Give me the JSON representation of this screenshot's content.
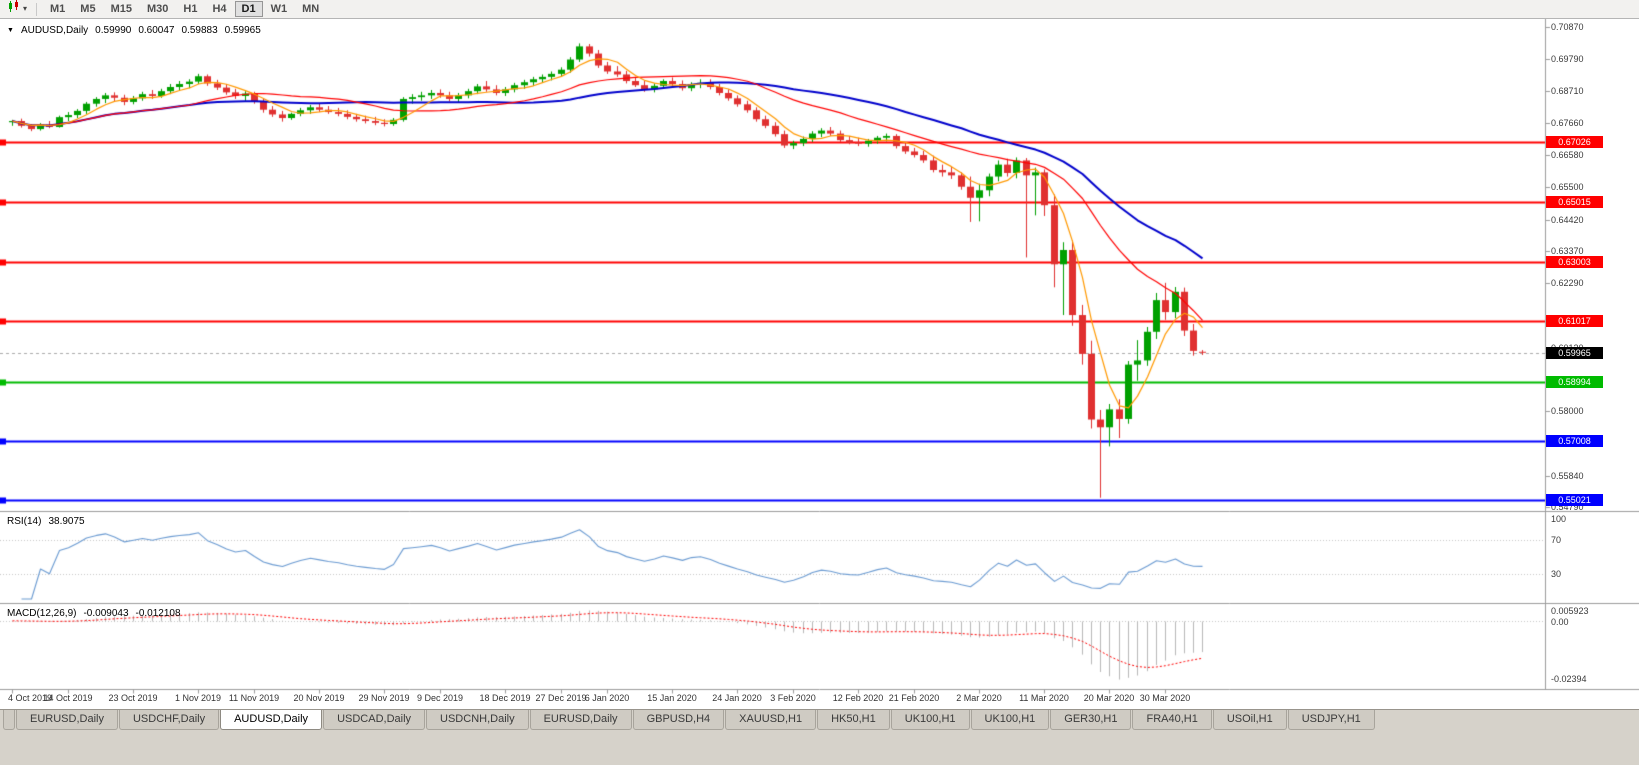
{
  "icons": {
    "collapse_triangle": "▼",
    "dropdown_caret": "▾"
  },
  "toolbar": {
    "timeframes": [
      "M1",
      "M5",
      "M15",
      "M30",
      "H1",
      "H4",
      "D1",
      "W1",
      "MN"
    ],
    "active_timeframe": "D1"
  },
  "main_chart": {
    "symbol_period": "AUDUSD,Daily",
    "open": "0.59990",
    "high": "0.60047",
    "low": "0.59883",
    "close": "0.59965"
  },
  "indicators": {
    "rsi": {
      "name": "RSI(14)",
      "value": "38.9075",
      "axis_labels": {
        "top": "100",
        "upper": "70",
        "lower": "30"
      },
      "levels": [
        70,
        30
      ],
      "line_color": "#6B9BD2"
    },
    "macd": {
      "name": "MACD(12,26,9)",
      "value_main": "-0.009043",
      "value_signal": "-0.012108",
      "axis_top": "0.005923",
      "axis_zero": "0.00",
      "axis_bottom": "-0.02394"
    }
  },
  "price_axis": {
    "ticks": [
      {
        "text": "0.70870",
        "value": 0.7087
      },
      {
        "text": "0.69790",
        "value": 0.6979
      },
      {
        "text": "0.68710",
        "value": 0.6871
      },
      {
        "text": "0.67660",
        "value": 0.6766
      },
      {
        "text": "0.66580",
        "value": 0.6658
      },
      {
        "text": "0.65500",
        "value": 0.655
      },
      {
        "text": "0.64420",
        "value": 0.6442
      },
      {
        "text": "0.63370",
        "value": 0.6337
      },
      {
        "text": "0.62290",
        "value": 0.6229
      },
      {
        "text": "0.60120",
        "value": 0.6012
      },
      {
        "text": "0.58000",
        "value": 0.58
      },
      {
        "text": "0.55840",
        "value": 0.5584
      },
      {
        "text": "0.54790",
        "value": 0.5479
      }
    ]
  },
  "date_axis": {
    "labels": [
      {
        "text": "4 Oct 2019",
        "index": 0
      },
      {
        "text": "14 Oct 2019",
        "index": 6
      },
      {
        "text": "23 Oct 2019",
        "index": 13
      },
      {
        "text": "1 Nov 2019",
        "index": 20
      },
      {
        "text": "11 Nov 2019",
        "index": 26
      },
      {
        "text": "20 Nov 2019",
        "index": 33
      },
      {
        "text": "29 Nov 2019",
        "index": 40
      },
      {
        "text": "9 Dec 2019",
        "index": 46
      },
      {
        "text": "18 Dec 2019",
        "index": 53
      },
      {
        "text": "27 Dec 2019",
        "index": 59
      },
      {
        "text": "6 Jan 2020",
        "index": 64
      },
      {
        "text": "15 Jan 2020",
        "index": 71
      },
      {
        "text": "24 Jan 2020",
        "index": 78
      },
      {
        "text": "3 Feb 2020",
        "index": 84
      },
      {
        "text": "12 Feb 2020",
        "index": 91
      },
      {
        "text": "21 Feb 2020",
        "index": 97
      },
      {
        "text": "2 Mar 2020",
        "index": 104
      },
      {
        "text": "11 Mar 2020",
        "index": 111
      },
      {
        "text": "20 Mar 2020",
        "index": 118
      },
      {
        "text": "30 Mar 2020",
        "index": 124
      }
    ]
  },
  "tabs": {
    "items": [
      "EURUSD,Daily",
      "USDCHF,Daily",
      "AUDUSD,Daily",
      "USDCAD,Daily",
      "USDCNH,Daily",
      "EURUSD,Daily",
      "GBPUSD,H4",
      "XAUUSD,H1",
      "HK50,H1",
      "UK100,H1",
      "UK100,H1",
      "GER30,H1",
      "FRA40,H1",
      "USOil,H1",
      "USDJPY,H1"
    ],
    "active_index": 2
  },
  "chart_data": {
    "type": "candlestick",
    "symbol": "AUDUSD",
    "period": "Daily",
    "ylim": [
      0.5479,
      0.7087
    ],
    "colors": {
      "up": "#00A000",
      "down": "#E03030",
      "background": "#FFFFFF"
    },
    "overlays": {
      "ma_fast": {
        "period": 5,
        "color": "#FF9900"
      },
      "ma_mid": {
        "period": 20,
        "color": "#FF0000"
      },
      "ma_slow": {
        "period": 34,
        "color": "#0000CC"
      }
    },
    "hlines": [
      {
        "value": 0.67026,
        "label": "0.67026",
        "color": "#FF0000"
      },
      {
        "value": 0.65015,
        "label": "0.65015",
        "color": "#FF0000"
      },
      {
        "value": 0.63003,
        "label": "0.63003",
        "color": "#FF0000"
      },
      {
        "value": 0.61017,
        "label": "0.61017",
        "color": "#FF0000"
      },
      {
        "value": 0.58994,
        "label": "0.58994",
        "color": "#00BB00"
      },
      {
        "value": 0.57008,
        "label": "0.57008",
        "color": "#0000FF"
      },
      {
        "value": 0.55021,
        "label": "0.55021",
        "color": "#0000FF"
      }
    ],
    "current_price": {
      "value": 0.59965,
      "label": "0.59965",
      "color": "#000000"
    },
    "rsi": {
      "period": 14
    },
    "macd": {
      "fast": 12,
      "slow": 26,
      "signal": 9,
      "colors": {
        "histogram": "#B8B8B8",
        "signal": "#FF0000"
      }
    },
    "candles": [
      [
        0.6768,
        0.6776,
        0.6756,
        0.6772
      ],
      [
        0.6772,
        0.678,
        0.675,
        0.6756
      ],
      [
        0.6756,
        0.6762,
        0.6738,
        0.6745
      ],
      [
        0.6745,
        0.6765,
        0.674,
        0.676
      ],
      [
        0.676,
        0.6772,
        0.6748,
        0.6752
      ],
      [
        0.6752,
        0.679,
        0.675,
        0.6785
      ],
      [
        0.6785,
        0.6802,
        0.6772,
        0.6792
      ],
      [
        0.6792,
        0.6812,
        0.6782,
        0.6806
      ],
      [
        0.6806,
        0.6836,
        0.6796,
        0.683
      ],
      [
        0.683,
        0.6852,
        0.682,
        0.6846
      ],
      [
        0.6846,
        0.6866,
        0.6832,
        0.6858
      ],
      [
        0.6858,
        0.6868,
        0.6838,
        0.685
      ],
      [
        0.685,
        0.686,
        0.6825,
        0.6836
      ],
      [
        0.6836,
        0.6856,
        0.6828,
        0.6848
      ],
      [
        0.6848,
        0.687,
        0.684,
        0.6862
      ],
      [
        0.6862,
        0.6876,
        0.6846,
        0.6856
      ],
      [
        0.6856,
        0.688,
        0.685,
        0.6872
      ],
      [
        0.6872,
        0.6896,
        0.6862,
        0.6886
      ],
      [
        0.6886,
        0.6906,
        0.6876,
        0.6896
      ],
      [
        0.6896,
        0.6912,
        0.6882,
        0.6904
      ],
      [
        0.6904,
        0.693,
        0.6896,
        0.6922
      ],
      [
        0.6922,
        0.6928,
        0.689,
        0.6898
      ],
      [
        0.6898,
        0.691,
        0.6876,
        0.6884
      ],
      [
        0.6884,
        0.6896,
        0.686,
        0.6868
      ],
      [
        0.6868,
        0.688,
        0.6846,
        0.6856
      ],
      [
        0.6856,
        0.6872,
        0.684,
        0.6864
      ],
      [
        0.6864,
        0.687,
        0.683,
        0.6838
      ],
      [
        0.6838,
        0.6848,
        0.68,
        0.681
      ],
      [
        0.681,
        0.6822,
        0.6786,
        0.6794
      ],
      [
        0.6794,
        0.6806,
        0.677,
        0.6782
      ],
      [
        0.6782,
        0.68,
        0.6776,
        0.6796
      ],
      [
        0.6796,
        0.6816,
        0.6788,
        0.6808
      ],
      [
        0.6808,
        0.6826,
        0.6796,
        0.6818
      ],
      [
        0.6818,
        0.683,
        0.6802,
        0.681
      ],
      [
        0.681,
        0.6822,
        0.6796,
        0.6802
      ],
      [
        0.6802,
        0.6816,
        0.6788,
        0.6796
      ],
      [
        0.6796,
        0.6808,
        0.6778,
        0.6786
      ],
      [
        0.6786,
        0.6796,
        0.677,
        0.6778
      ],
      [
        0.6778,
        0.679,
        0.6764,
        0.6772
      ],
      [
        0.6772,
        0.6786,
        0.6758,
        0.6766
      ],
      [
        0.6766,
        0.6778,
        0.6754,
        0.6762
      ],
      [
        0.6762,
        0.6782,
        0.6756,
        0.6776
      ],
      [
        0.6776,
        0.6852,
        0.677,
        0.6846
      ],
      [
        0.6846,
        0.6862,
        0.683,
        0.6852
      ],
      [
        0.6852,
        0.687,
        0.684,
        0.6858
      ],
      [
        0.6858,
        0.6876,
        0.6846,
        0.6866
      ],
      [
        0.6866,
        0.6878,
        0.685,
        0.6858
      ],
      [
        0.6858,
        0.687,
        0.6838,
        0.6846
      ],
      [
        0.6846,
        0.6866,
        0.6836,
        0.6858
      ],
      [
        0.6858,
        0.688,
        0.6848,
        0.6872
      ],
      [
        0.6872,
        0.6896,
        0.6862,
        0.6888
      ],
      [
        0.6888,
        0.6906,
        0.687,
        0.6878
      ],
      [
        0.6878,
        0.6892,
        0.6858,
        0.6866
      ],
      [
        0.6866,
        0.6886,
        0.6856,
        0.6878
      ],
      [
        0.6878,
        0.69,
        0.6868,
        0.6892
      ],
      [
        0.6892,
        0.691,
        0.688,
        0.6902
      ],
      [
        0.6902,
        0.692,
        0.689,
        0.6912
      ],
      [
        0.6912,
        0.6928,
        0.69,
        0.692
      ],
      [
        0.692,
        0.6938,
        0.6908,
        0.693
      ],
      [
        0.693,
        0.6952,
        0.692,
        0.6944
      ],
      [
        0.6944,
        0.6986,
        0.6934,
        0.6978
      ],
      [
        0.6978,
        0.7032,
        0.697,
        0.7022
      ],
      [
        0.7022,
        0.703,
        0.6988,
        0.6998
      ],
      [
        0.6998,
        0.701,
        0.695,
        0.6958
      ],
      [
        0.6958,
        0.697,
        0.693,
        0.6938
      ],
      [
        0.6938,
        0.6956,
        0.692,
        0.6928
      ],
      [
        0.6928,
        0.694,
        0.6898,
        0.6906
      ],
      [
        0.6906,
        0.692,
        0.6886,
        0.6892
      ],
      [
        0.6892,
        0.6906,
        0.687,
        0.6878
      ],
      [
        0.6878,
        0.6898,
        0.6868,
        0.689
      ],
      [
        0.689,
        0.6912,
        0.688,
        0.6906
      ],
      [
        0.6906,
        0.6918,
        0.6888,
        0.6896
      ],
      [
        0.6896,
        0.6908,
        0.6874,
        0.6882
      ],
      [
        0.6882,
        0.6902,
        0.6872,
        0.6896
      ],
      [
        0.6896,
        0.6912,
        0.6882,
        0.69
      ],
      [
        0.69,
        0.6912,
        0.6878,
        0.6886
      ],
      [
        0.6886,
        0.6896,
        0.6858,
        0.6866
      ],
      [
        0.6866,
        0.6878,
        0.684,
        0.6848
      ],
      [
        0.6848,
        0.6858,
        0.682,
        0.6828
      ],
      [
        0.6828,
        0.684,
        0.68,
        0.6808
      ],
      [
        0.6808,
        0.6818,
        0.677,
        0.6778
      ],
      [
        0.6778,
        0.679,
        0.6748,
        0.6756
      ],
      [
        0.6756,
        0.6768,
        0.672,
        0.6728
      ],
      [
        0.6728,
        0.674,
        0.6682,
        0.669
      ],
      [
        0.669,
        0.6706,
        0.6678,
        0.6698
      ],
      [
        0.6698,
        0.672,
        0.6688,
        0.6712
      ],
      [
        0.6712,
        0.6738,
        0.6702,
        0.673
      ],
      [
        0.673,
        0.6748,
        0.6718,
        0.674
      ],
      [
        0.674,
        0.6752,
        0.6722,
        0.673
      ],
      [
        0.673,
        0.674,
        0.6702,
        0.6708
      ],
      [
        0.6708,
        0.6722,
        0.6694,
        0.67
      ],
      [
        0.67,
        0.6716,
        0.6688,
        0.6696
      ],
      [
        0.6696,
        0.6712,
        0.6686,
        0.6706
      ],
      [
        0.6706,
        0.6722,
        0.6696,
        0.6716
      ],
      [
        0.6716,
        0.673,
        0.6704,
        0.6722
      ],
      [
        0.6722,
        0.6728,
        0.668,
        0.6688
      ],
      [
        0.6688,
        0.67,
        0.6662,
        0.667
      ],
      [
        0.667,
        0.6682,
        0.665,
        0.6658
      ],
      [
        0.6658,
        0.6672,
        0.6632,
        0.664
      ],
      [
        0.664,
        0.6656,
        0.66,
        0.6608
      ],
      [
        0.6608,
        0.6626,
        0.6586,
        0.66
      ],
      [
        0.66,
        0.6618,
        0.6578,
        0.659
      ],
      [
        0.659,
        0.66,
        0.6542,
        0.6552
      ],
      [
        0.6552,
        0.6586,
        0.6434,
        0.6515
      ],
      [
        0.6515,
        0.6562,
        0.6436,
        0.654
      ],
      [
        0.654,
        0.6596,
        0.652,
        0.6586
      ],
      [
        0.6586,
        0.664,
        0.657,
        0.6626
      ],
      [
        0.6626,
        0.6646,
        0.6586,
        0.6598
      ],
      [
        0.6598,
        0.665,
        0.658,
        0.664
      ],
      [
        0.664,
        0.6648,
        0.6315,
        0.659
      ],
      [
        0.659,
        0.6616,
        0.6456,
        0.66
      ],
      [
        0.66,
        0.661,
        0.6454,
        0.649
      ],
      [
        0.649,
        0.6526,
        0.6215,
        0.6292
      ],
      [
        0.6292,
        0.6366,
        0.6122,
        0.634
      ],
      [
        0.634,
        0.6372,
        0.6086,
        0.6122
      ],
      [
        0.6122,
        0.6156,
        0.5956,
        0.5992
      ],
      [
        0.5992,
        0.6036,
        0.5742,
        0.5772
      ],
      [
        0.5772,
        0.5804,
        0.551,
        0.5746
      ],
      [
        0.5746,
        0.5824,
        0.5682,
        0.5806
      ],
      [
        0.5806,
        0.584,
        0.571,
        0.5774
      ],
      [
        0.5774,
        0.5968,
        0.5758,
        0.5956
      ],
      [
        0.5956,
        0.6038,
        0.5902,
        0.597
      ],
      [
        0.597,
        0.6082,
        0.5952,
        0.6066
      ],
      [
        0.6066,
        0.6196,
        0.6042,
        0.6172
      ],
      [
        0.6172,
        0.623,
        0.6106,
        0.6132
      ],
      [
        0.6132,
        0.6216,
        0.6112,
        0.62
      ],
      [
        0.62,
        0.6214,
        0.6052,
        0.607
      ],
      [
        0.607,
        0.6092,
        0.5986,
        0.6002
      ],
      [
        0.5999,
        0.60047,
        0.59883,
        0.59965
      ]
    ]
  }
}
